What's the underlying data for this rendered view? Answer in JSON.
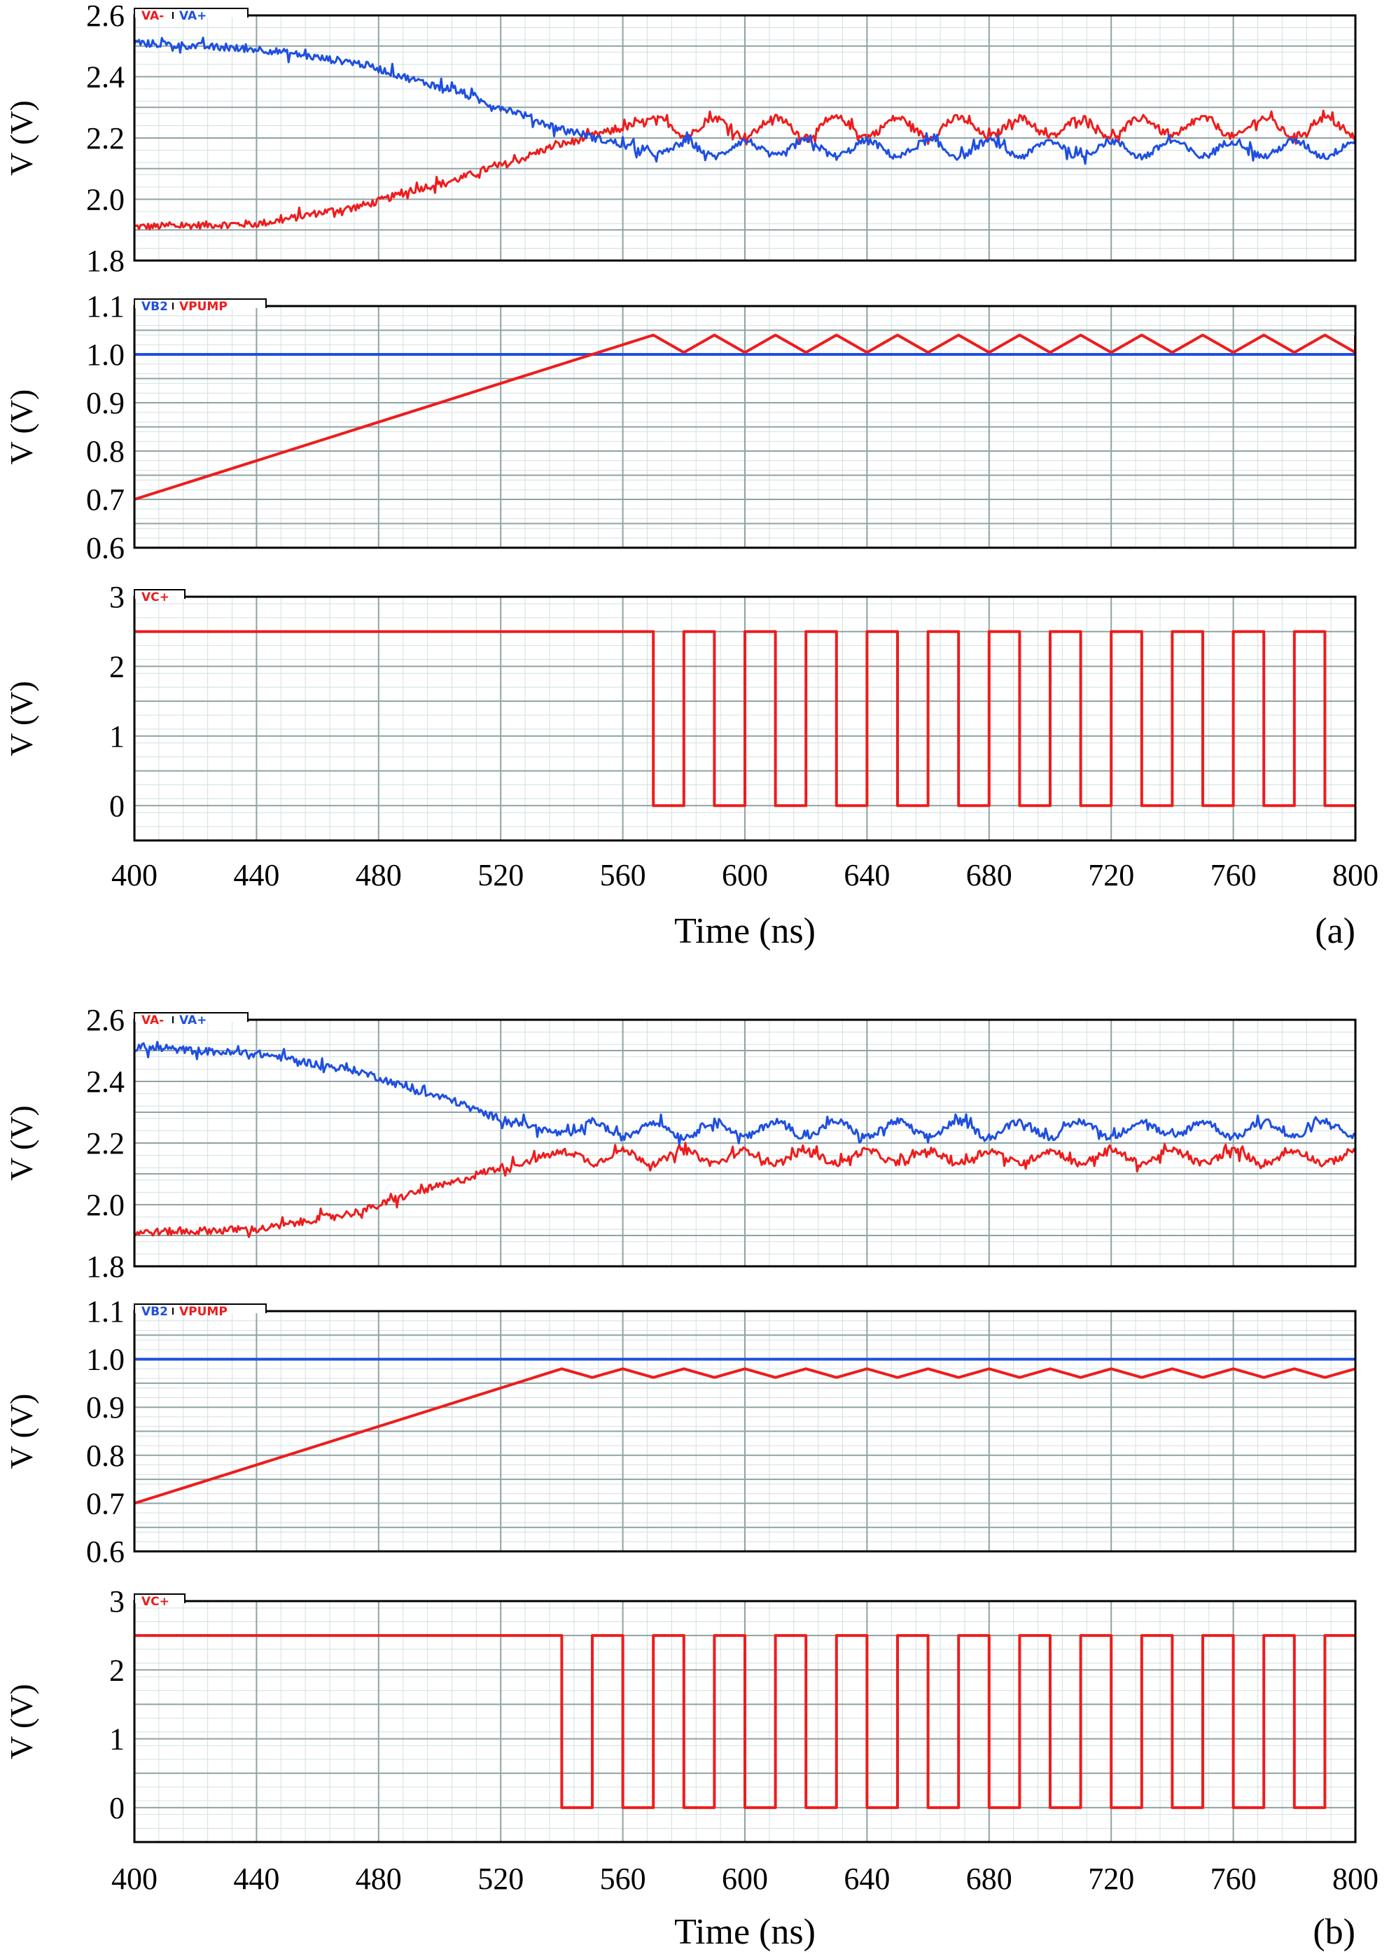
{
  "colors": {
    "red": "#ee1c1c",
    "blue": "#1f4fe0",
    "frame": "#000000",
    "major_grid": "#8fa3a3",
    "minor_grid": "#d2e0e0"
  },
  "chart_data": [
    {
      "figure": "(a)",
      "xlabel": "Time (ns)",
      "x_ticks": [
        "400",
        "440",
        "480",
        "520",
        "560",
        "600",
        "640",
        "680",
        "720",
        "760",
        "800"
      ],
      "xlim": [
        400,
        800
      ],
      "panels": [
        {
          "type": "line",
          "ylabel": "V (V)",
          "ylim": [
            1.8,
            2.6
          ],
          "y_ticks": [
            "1.8",
            "2.0",
            "2.2",
            "2.4",
            "2.6"
          ],
          "legend": [
            "VA-",
            "VA+"
          ],
          "series": [
            {
              "name": "VA-",
              "color": "red",
              "x": [
                400,
                440,
                470,
                500,
                520,
                540,
                555,
                570
              ],
              "values": [
                1.91,
                1.92,
                1.97,
                2.05,
                2.11,
                2.18,
                2.22,
                2.26
              ],
              "ripple": {
                "mean": 2.235,
                "amp": 0.03,
                "period": 20,
                "phase_deg": 90,
                "start": 570,
                "noise": 0.012
              }
            },
            {
              "name": "VA+",
              "color": "blue",
              "x": [
                400,
                440,
                470,
                500,
                520,
                540,
                555,
                570
              ],
              "values": [
                2.51,
                2.49,
                2.45,
                2.37,
                2.3,
                2.23,
                2.19,
                2.15
              ],
              "ripple": {
                "mean": 2.165,
                "amp": 0.025,
                "period": 20,
                "phase_deg": 270,
                "start": 570,
                "noise": 0.012
              }
            }
          ]
        },
        {
          "type": "line",
          "ylabel": "V (V)",
          "ylim": [
            0.6,
            1.1
          ],
          "y_ticks": [
            "0.6",
            "0.7",
            "0.8",
            "0.9",
            "1.0",
            "1.1"
          ],
          "legend": [
            "VB2",
            "VPUMP"
          ],
          "series": [
            {
              "name": "VB2",
              "color": "blue",
              "x": [
                400,
                800
              ],
              "values": [
                1.0,
                1.0
              ]
            },
            {
              "name": "VPUMP",
              "color": "red",
              "x": [
                400,
                570
              ],
              "values": [
                0.7,
                1.04
              ],
              "sawtooth": {
                "start": 570,
                "period": 20,
                "high": 1.04,
                "low": 1.0,
                "until": 800
              }
            }
          ]
        },
        {
          "type": "line",
          "ylabel": "V (V)",
          "ylim": [
            -0.5,
            3
          ],
          "y_ticks": [
            "0",
            "1",
            "2",
            "3"
          ],
          "legend": [
            "VC+"
          ],
          "series": [
            {
              "name": "VC+",
              "color": "red",
              "square": {
                "high": 2.5,
                "low": 0,
                "start": 570,
                "period": 20,
                "low_width": 10,
                "until": 800
              }
            }
          ]
        }
      ]
    },
    {
      "figure": "(b)",
      "xlabel": "Time (ns)",
      "x_ticks": [
        "400",
        "440",
        "480",
        "520",
        "560",
        "600",
        "640",
        "680",
        "720",
        "760",
        "800"
      ],
      "xlim": [
        400,
        800
      ],
      "panels": [
        {
          "type": "line",
          "ylabel": "V (V)",
          "ylim": [
            1.8,
            2.6
          ],
          "y_ticks": [
            "1.8",
            "2.0",
            "2.2",
            "2.4",
            "2.6"
          ],
          "legend": [
            "VA-",
            "VA+"
          ],
          "series": [
            {
              "name": "VA-",
              "color": "red",
              "x": [
                400,
                440,
                470,
                500,
                520,
                540
              ],
              "values": [
                1.91,
                1.92,
                1.97,
                2.06,
                2.12,
                2.17
              ],
              "ripple": {
                "mean": 2.155,
                "amp": 0.02,
                "period": 20,
                "phase_deg": 90,
                "start": 540,
                "noise": 0.012
              }
            },
            {
              "name": "VA+",
              "color": "blue",
              "x": [
                400,
                440,
                470,
                500,
                520,
                540
              ],
              "values": [
                2.51,
                2.49,
                2.44,
                2.35,
                2.28,
                2.23
              ],
              "ripple": {
                "mean": 2.245,
                "amp": 0.025,
                "period": 20,
                "phase_deg": 270,
                "start": 540,
                "noise": 0.012
              }
            }
          ]
        },
        {
          "type": "line",
          "ylabel": "V (V)",
          "ylim": [
            0.6,
            1.1
          ],
          "y_ticks": [
            "0.6",
            "0.7",
            "0.8",
            "0.9",
            "1.0",
            "1.1"
          ],
          "legend": [
            "VB2",
            "VPUMP"
          ],
          "series": [
            {
              "name": "VB2",
              "color": "blue",
              "x": [
                400,
                800
              ],
              "values": [
                1.0,
                1.0
              ]
            },
            {
              "name": "VPUMP",
              "color": "red",
              "x": [
                400,
                540
              ],
              "values": [
                0.7,
                0.98
              ],
              "sawtooth": {
                "start": 540,
                "period": 20,
                "high": 0.98,
                "low": 0.96,
                "until": 800
              }
            }
          ]
        },
        {
          "type": "line",
          "ylabel": "V (V)",
          "ylim": [
            -0.5,
            3
          ],
          "y_ticks": [
            "0",
            "1",
            "2",
            "3"
          ],
          "legend": [
            "VC+"
          ],
          "series": [
            {
              "name": "VC+",
              "color": "red",
              "square": {
                "high": 2.5,
                "low": 0,
                "start": 540,
                "period": 20,
                "low_width": 10,
                "until": 800
              }
            }
          ]
        }
      ]
    }
  ]
}
